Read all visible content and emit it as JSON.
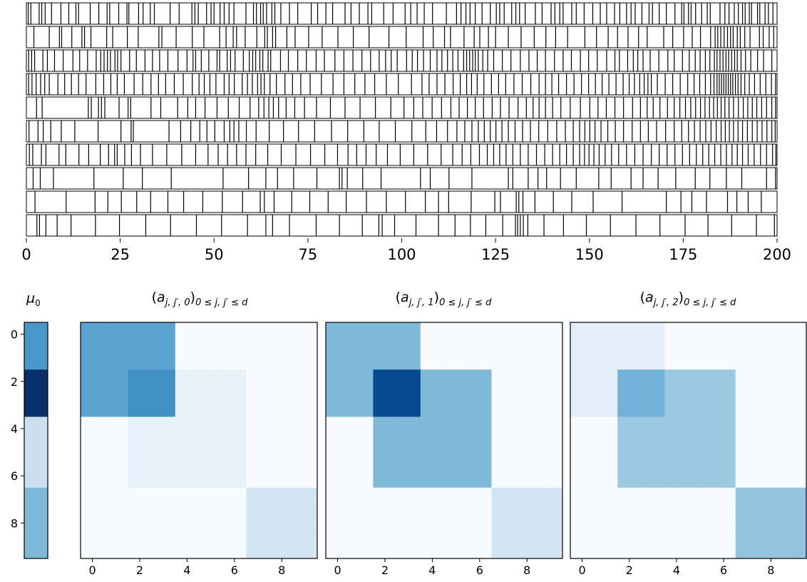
{
  "chart_data": [
    {
      "type": "event_raster",
      "xlim": [
        0,
        200
      ],
      "xticks": [
        0,
        25,
        50,
        75,
        100,
        125,
        150,
        175,
        200
      ],
      "n_rows": 10,
      "rows": [
        [
          0.5,
          1.2,
          3.4,
          4.1,
          5.0,
          6.7,
          9.2,
          11.3,
          13.2,
          13.9,
          17.0,
          19.3,
          21.5,
          22.2,
          24.6,
          26.8,
          27.3,
          29.9,
          31.1,
          33.0,
          34.1,
          38.3,
          40.7,
          44.1,
          44.9,
          45.8,
          48.0,
          49.2,
          50.0,
          51.6,
          52.7,
          54.0,
          55.3,
          58.5,
          60.5,
          61.3,
          62.4,
          63.1,
          64.0,
          65.4,
          66.2,
          67.8,
          70.1,
          72.3,
          75.9,
          77.6,
          79.8,
          81.6,
          84.9,
          86.5,
          88.7,
          91.0,
          92.0,
          95.2,
          97.7,
          100.9,
          102.4,
          104.1,
          106.0,
          108.2,
          111.9,
          114.6,
          115.8,
          117.1,
          118.2,
          119.6,
          121.4,
          123.6,
          125.2,
          126.1,
          127.3,
          129.3,
          130.4,
          131.4,
          132.9,
          135.6,
          137.4,
          139.8,
          140.8,
          142.1,
          143.0,
          145.3,
          146.5,
          148.6,
          150.9,
          152.9,
          154.6,
          156.7,
          158.1,
          159.9,
          161.1,
          162.2,
          164.0,
          165.9,
          166.8,
          168.6,
          170.5,
          172.8,
          174.6,
          175.2,
          176.4,
          177.1,
          178.3,
          179.9,
          181.4,
          182.2,
          184.8,
          186.1,
          187.2,
          188.6,
          189.7,
          190.8,
          191.5,
          192.6,
          193.2,
          194.8,
          195.4,
          196.8,
          197.7,
          198.9
        ],
        [
          2.0,
          6.1,
          8.8,
          9.4,
          12.1,
          14.8,
          15.5,
          17.2,
          21.4,
          23.0,
          26.9,
          29.8,
          35.3,
          36.1,
          39.9,
          44.2,
          47.3,
          51.5,
          53.2,
          55.1,
          56.0,
          58.3,
          61.4,
          63.5,
          64.2,
          65.6,
          66.4,
          69.4,
          71.6,
          75.2,
          78.8,
          83.0,
          87.1,
          91.3,
          96.6,
          101.2,
          105.7,
          108.4,
          111.4,
          113.0,
          116.6,
          119.3,
          120.8,
          123.1,
          125.0,
          128.4,
          131.8,
          135.3,
          138.4,
          141.0,
          144.2,
          148.8,
          151.9,
          155.0,
          157.5,
          160.3,
          163.1,
          165.4,
          169.8,
          172.2,
          175.1,
          177.4,
          179.6,
          182.3,
          183.5,
          184.2,
          185.0,
          185.9,
          186.8,
          187.6,
          188.3,
          189.4,
          190.2,
          191.4,
          192.8,
          195.3,
          196.3,
          197.9,
          199.1
        ],
        [
          0.6,
          1.4,
          2.2,
          4.4,
          5.6,
          7.5,
          9.8,
          12.4,
          14.2,
          16.3,
          18.6,
          19.8,
          20.7,
          21.6,
          22.4,
          23.6,
          24.3,
          25.2,
          27.5,
          29.3,
          31.6,
          33.6,
          35.5,
          37.7,
          40.4,
          42.8,
          44.4,
          45.1,
          46.6,
          48.6,
          50.8,
          51.5,
          53.5,
          54.4,
          55.6,
          57.8,
          59.4,
          60.3,
          61.1,
          62.2,
          63.0,
          64.4,
          65.1,
          67.7,
          69.8,
          72.3,
          74.6,
          77.2,
          79.4,
          82.2,
          84.6,
          87.0,
          89.4,
          91.7,
          94.0,
          95.7,
          97.2,
          98.8,
          101.3,
          102.8,
          104.2,
          105.8,
          107.6,
          109.4,
          110.7,
          112.2,
          113.6,
          115.0,
          116.5,
          117.3,
          118.1,
          118.9,
          119.6,
          120.4,
          121.6,
          122.9,
          124.5,
          126.8,
          129.1,
          131.6,
          133.9,
          136.1,
          138.3,
          140.7,
          143.0,
          145.2,
          147.6,
          149.8,
          152.1,
          154.6,
          156.8,
          158.0,
          160.2,
          161.7,
          162.9,
          164.3,
          166.2,
          168.5,
          170.9,
          172.6,
          174.8,
          176.6,
          178.2,
          179.5,
          180.9,
          182.1,
          183.3,
          184.0,
          184.8,
          185.6,
          186.4,
          187.1,
          187.9,
          188.7,
          189.4,
          190.4,
          191.6,
          193.0,
          194.8,
          196.4,
          198.6
        ],
        [
          0.6,
          1.5,
          2.6,
          3.8,
          4.9,
          6.1,
          8.4,
          10.2,
          12.0,
          13.9,
          15.9,
          18.5,
          20.6,
          22.5,
          24.2,
          26.1,
          28.7,
          31.0,
          33.2,
          35.2,
          37.1,
          39.4,
          41.8,
          44.2,
          46.0,
          47.4,
          48.9,
          50.5,
          52.7,
          54.0,
          55.4,
          57.5,
          58.9,
          60.2,
          61.6,
          62.5,
          63.4,
          64.9,
          66.6,
          68.9,
          70.9,
          73.1,
          75.6,
          78.6,
          81.7,
          84.6,
          87.5,
          90.2,
          92.8,
          95.9,
          99.1,
          102.6,
          105.4,
          107.3,
          109.4,
          111.5,
          113.7,
          115.6,
          117.3,
          118.6,
          120.1,
          121.9,
          123.9,
          125.8,
          127.7,
          129.9,
          132.1,
          134.4,
          136.6,
          138.3,
          140.0,
          141.8,
          143.9,
          145.9,
          147.9,
          149.8,
          151.6,
          153.4,
          155.2,
          157.1,
          159.0,
          160.6,
          162.0,
          163.4,
          164.6,
          165.6,
          166.5,
          168.1,
          170.2,
          172.2,
          174.2,
          176.2,
          177.9,
          179.4,
          180.9,
          182.3,
          183.2,
          184.0,
          184.6,
          185.2,
          185.8,
          186.4,
          187.0,
          187.6,
          188.2,
          188.9,
          189.6,
          190.4,
          191.4,
          192.6,
          194.0,
          195.5,
          197.0,
          198.5,
          199.6
        ],
        [
          2.7,
          4.2,
          16.5,
          17.3,
          19.2,
          20.0,
          20.9,
          24.7,
          27.1,
          27.8,
          33.2,
          35.8,
          40.3,
          43.0,
          45.1,
          47.6,
          50.8,
          53.8,
          56.7,
          59.6,
          61.9,
          63.3,
          64.6,
          65.8,
          67.2,
          69.2,
          71.5,
          74.1,
          77.3,
          81.0,
          84.9,
          88.9,
          93.0,
          97.1,
          100.6,
          103.2,
          105.6,
          108.1,
          110.6,
          113.1,
          115.3,
          117.5,
          119.6,
          121.8,
          124.1,
          126.3,
          128.6,
          131.0,
          133.2,
          135.0,
          136.6,
          138.3,
          140.2,
          142.4,
          144.9,
          147.6,
          150.1,
          152.3,
          154.5,
          156.8,
          159.1,
          161.5,
          163.6,
          165.4,
          167.0,
          168.8,
          170.8,
          172.6,
          174.1,
          175.6,
          177.0,
          178.3,
          179.6,
          180.8,
          182.0,
          183.1,
          184.1,
          185.1,
          186.1,
          187.2,
          188.4,
          189.7,
          191.0,
          192.2,
          193.4,
          194.6,
          195.9,
          197.2,
          198.6,
          199.6
        ],
        [
          0.7,
          3.1,
          4.5,
          6.5,
          9.3,
          12.9,
          19.1,
          25.2,
          27.9,
          28.5,
          38.0,
          41.1,
          43.8,
          46.2,
          48.1,
          50.2,
          52.7,
          54.2,
          55.3,
          56.6,
          58.6,
          61.2,
          64.7,
          68.5,
          72.5,
          76.8,
          81.3,
          85.6,
          89.9,
          94.0,
          98.3,
          102.7,
          106.4,
          109.3,
          112.2,
          114.7,
          116.8,
          118.7,
          120.4,
          122.0,
          123.6,
          125.1,
          126.7,
          128.4,
          130.2,
          132.2,
          134.3,
          136.5,
          138.9,
          141.3,
          143.6,
          145.7,
          147.4,
          148.8,
          150.1,
          151.5,
          153.1,
          154.9,
          156.9,
          159.1,
          161.4,
          163.6,
          165.7,
          167.9,
          170.3,
          172.6,
          174.6,
          176.4,
          178.0,
          179.5,
          181.0,
          182.4,
          183.8,
          185.1,
          186.2,
          187.3,
          188.4,
          189.6,
          190.8,
          192.1,
          193.4,
          194.7,
          196.0,
          197.3,
          198.6,
          199.5
        ],
        [
          0.8,
          1.7,
          4.0,
          5.2,
          8.7,
          10.5,
          14.0,
          16.6,
          19.7,
          21.9,
          23.5,
          24.2,
          26.2,
          28.0,
          30.4,
          33.6,
          37.4,
          41.4,
          45.1,
          48.4,
          51.1,
          53.6,
          56.0,
          58.5,
          61.1,
          64.3,
          67.9,
          71.8,
          75.7,
          79.5,
          82.9,
          85.7,
          88.0,
          90.5,
          93.2,
          96.2,
          99.6,
          103.2,
          106.9,
          110.5,
          113.6,
          116.1,
          118.4,
          120.7,
          122.8,
          124.5,
          126.1,
          127.8,
          129.6,
          131.6,
          133.7,
          135.9,
          138.1,
          140.2,
          142.1,
          143.9,
          145.7,
          147.4,
          148.7,
          149.9,
          151.2,
          152.6,
          154.2,
          155.9,
          157.8,
          159.9,
          162.1,
          164.3,
          166.5,
          168.6,
          170.7,
          172.8,
          174.8,
          176.7,
          178.5,
          180.2,
          181.8,
          183.4,
          185.0,
          186.5,
          188.0,
          189.4,
          190.8,
          192.3,
          193.9,
          195.6,
          197.2,
          198.8,
          199.7
        ],
        [
          1.8,
          3.7,
          7.2,
          18.0,
          25.8,
          30.9,
          38.6,
          52.4,
          59.2,
          63.8,
          66.9,
          71.2,
          77.4,
          83.4,
          84.1,
          85.5,
          89.6,
          94.5,
          105.0,
          107.6,
          112.6,
          118.7,
          128.4,
          129.6,
          133.7,
          136.3,
          138.6,
          142.3,
          146.5,
          152.5,
          155.8,
          161.1,
          164.3,
          168.3,
          173.0,
          178.2,
          182.1,
          186.5,
          190.6,
          197.2,
          199.6
        ],
        [
          2.3,
          10.6,
          18.3,
          21.7,
          25.3,
          29.4,
          33.1,
          37.7,
          41.9,
          47.0,
          52.2,
          57.6,
          62.3,
          63.4,
          66.0,
          70.7,
          75.5,
          80.4,
          85.2,
          90.6,
          95.9,
          101.0,
          106.3,
          109.8,
          112.5,
          118.5,
          124.8,
          126.3,
          130.5,
          131.2,
          132.3,
          135.5,
          140.4,
          145.3,
          151.0,
          158.7,
          170.5,
          174.4,
          177.3,
          181.2,
          186.8,
          189.3,
          192.3,
          195.8
        ],
        [
          2.8,
          3.5,
          5.2,
          8.2,
          11.9,
          18.4,
          24.8,
          31.8,
          38.4,
          45.3,
          52.0,
          58.9,
          63.8,
          65.6,
          70.1,
          77.2,
          83.4,
          89.5,
          93.9,
          94.8,
          98.1,
          103.8,
          109.8,
          114.2,
          118.3,
          122.4,
          126.9,
          130.3,
          130.9,
          131.6,
          132.4,
          133.6,
          137.9,
          143.1,
          149.2,
          155.6,
          162.4,
          168.8,
          175.5,
          181.6,
          187.9,
          194.5,
          199.3
        ]
      ]
    },
    {
      "type": "heatmap",
      "title": "μ0",
      "colormap": "Blues",
      "yticks": [
        0,
        2,
        4,
        6,
        8
      ],
      "values": [
        0.6,
        0.6,
        1.0,
        1.0,
        0.22,
        0.22,
        0.22,
        0.45,
        0.45,
        0.45
      ]
    },
    {
      "type": "heatmap",
      "title": "(aj,j′,0)0≤j,j′≤d",
      "colormap": "Blues",
      "xticks": [
        0,
        2,
        4,
        6,
        8
      ],
      "blocks": [
        {
          "rows": [
            0,
            3
          ],
          "cols": [
            0,
            3
          ],
          "value": 0.55
        },
        {
          "rows": [
            2,
            6
          ],
          "cols": [
            2,
            6
          ],
          "value": 0.08
        },
        {
          "rows": [
            7,
            9
          ],
          "cols": [
            7,
            9
          ],
          "value": 0.18
        }
      ]
    },
    {
      "type": "heatmap",
      "title": "(aj,j′,1)0≤j,j′≤d",
      "colormap": "Blues",
      "xticks": [
        0,
        2,
        4,
        6,
        8
      ],
      "blocks": [
        {
          "rows": [
            0,
            3
          ],
          "cols": [
            0,
            3
          ],
          "value": 0.45
        },
        {
          "rows": [
            2,
            6
          ],
          "cols": [
            2,
            6
          ],
          "value": 0.45
        },
        {
          "rows": [
            7,
            9
          ],
          "cols": [
            7,
            9
          ],
          "value": 0.18
        }
      ]
    },
    {
      "type": "heatmap",
      "title": "(aj,j′,2)0≤j,j′≤d",
      "colormap": "Blues",
      "xticks": [
        0,
        2,
        4,
        6,
        8
      ],
      "blocks": [
        {
          "rows": [
            0,
            3
          ],
          "cols": [
            0,
            3
          ],
          "value": 0.1
        },
        {
          "rows": [
            2,
            6
          ],
          "cols": [
            2,
            6
          ],
          "value": 0.38
        },
        {
          "rows": [
            7,
            9
          ],
          "cols": [
            7,
            9
          ],
          "value": 0.4
        }
      ]
    }
  ]
}
